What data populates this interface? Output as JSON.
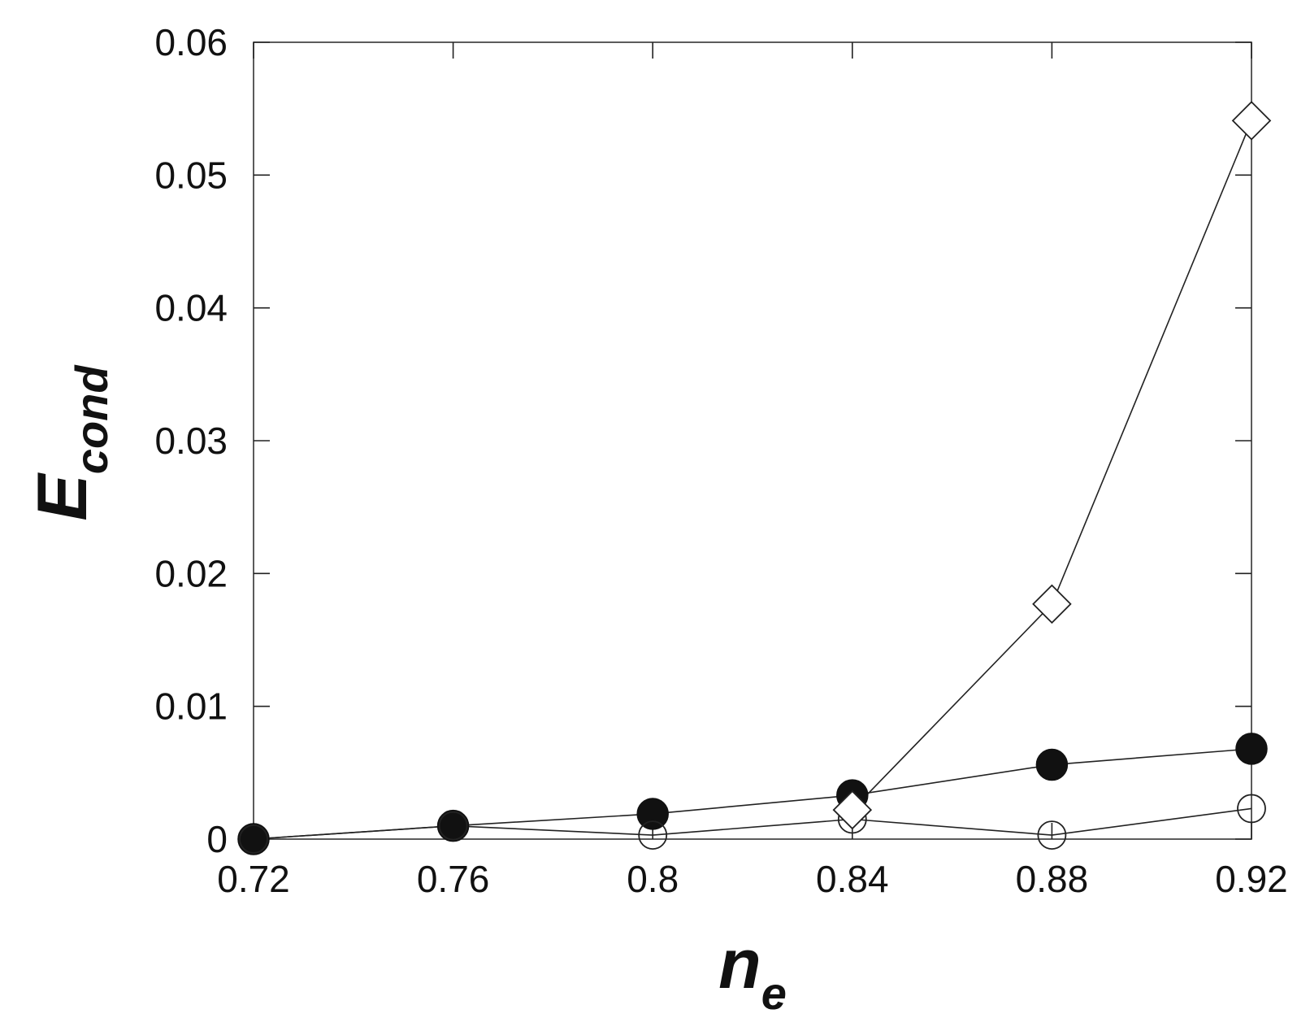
{
  "chart_data": {
    "type": "line",
    "title": "",
    "xlabel": "n",
    "xlabel_subscript": "e",
    "ylabel": "E",
    "ylabel_subscript": "cond",
    "xlim": [
      0.72,
      0.92
    ],
    "ylim": [
      0,
      0.06
    ],
    "x_ticks": [
      0.72,
      0.76,
      0.8,
      0.84,
      0.88,
      0.92
    ],
    "x_tick_labels": [
      "0.72",
      "0.76",
      "0.8",
      "0.84",
      "0.88",
      "0.92"
    ],
    "y_ticks": [
      0,
      0.01,
      0.02,
      0.03,
      0.04,
      0.05,
      0.06
    ],
    "y_tick_labels": [
      "0",
      "0.01",
      "0.02",
      "0.03",
      "0.04",
      "0.05",
      "0.06"
    ],
    "grid": false,
    "legend": "none",
    "series": [
      {
        "marker": "filled-circle",
        "x": [
          0.72,
          0.76,
          0.8,
          0.84,
          0.88,
          0.92
        ],
        "y": [
          0.0,
          0.001,
          0.0019,
          0.0033,
          0.0056,
          0.0068
        ]
      },
      {
        "marker": "open-circle",
        "x": [
          0.72,
          0.76,
          0.8,
          0.84,
          0.88,
          0.92
        ],
        "y": [
          0.0,
          0.001,
          0.0003,
          0.0015,
          0.0003,
          0.0023
        ]
      },
      {
        "marker": "open-diamond",
        "x": [
          0.84,
          0.88,
          0.92
        ],
        "y": [
          0.0022,
          0.0177,
          0.0541
        ]
      }
    ],
    "colors": {
      "line": "#222222",
      "marker_fill": "#111111",
      "open_fill": "#ffffff"
    }
  }
}
